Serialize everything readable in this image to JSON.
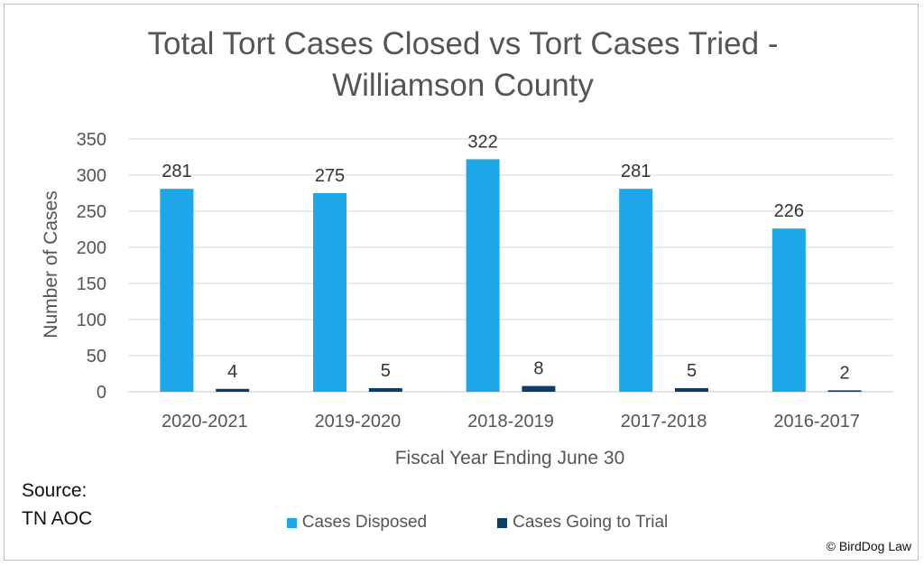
{
  "chart_data": {
    "type": "bar",
    "title": "Total Tort Cases Closed vs Tort Cases Tried -\nWilliamson County",
    "title_lines": [
      "Total Tort Cases Closed vs Tort Cases Tried -",
      "Williamson County"
    ],
    "xlabel": "Fiscal Year Ending June 30",
    "ylabel": "Number of Cases",
    "categories": [
      "2020-2021",
      "2019-2020",
      "2018-2019",
      "2017-2018",
      "2016-2017"
    ],
    "series": [
      {
        "name": "Cases Disposed",
        "values": [
          281,
          275,
          322,
          281,
          226
        ],
        "color": "#1ea7e8"
      },
      {
        "name": "Cases Going to Trial",
        "values": [
          4,
          5,
          8,
          5,
          2
        ],
        "color": "#0d3d66"
      }
    ],
    "ylim": [
      0,
      350
    ],
    "yticks": [
      0,
      50,
      100,
      150,
      200,
      250,
      300,
      350
    ],
    "grid": true,
    "legend_position": "bottom",
    "data_labels": true
  },
  "source": {
    "line1": "Source:",
    "line2": "TN AOC"
  },
  "copyright": "© BirdDog Law"
}
